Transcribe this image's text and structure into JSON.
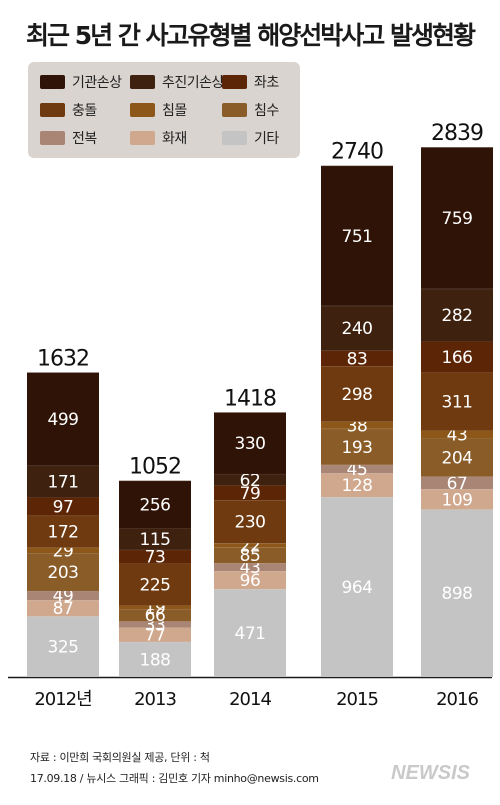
{
  "title": "최근 5년 간 사고유형별 해양선박사고 발생현황",
  "colors": {
    "기관손상": "#2f1306",
    "추진기손상": "#3e220f",
    "좌초": "#5c2505",
    "충돌": "#6f3a0f",
    "침몰": "#8c5718",
    "침수": "#8a5c28",
    "전복": "#a88574",
    "화재": "#cfa88e",
    "기타": "#c4c4c4"
  },
  "chart_data": {
    "type": "bar",
    "stacked": true,
    "categories": [
      "2012년",
      "2013",
      "2014",
      "2015",
      "2016"
    ],
    "totals": [
      1632,
      1052,
      1418,
      2740,
      2839
    ],
    "series": [
      {
        "name": "기타",
        "values": [
          325,
          188,
          471,
          964,
          898
        ]
      },
      {
        "name": "화재",
        "values": [
          87,
          77,
          96,
          128,
          109
        ]
      },
      {
        "name": "전복",
        "values": [
          49,
          33,
          43,
          45,
          67
        ]
      },
      {
        "name": "침수",
        "values": [
          203,
          66,
          85,
          193,
          204
        ]
      },
      {
        "name": "침몰",
        "values": [
          29,
          19,
          22,
          38,
          43
        ]
      },
      {
        "name": "충돌",
        "values": [
          172,
          225,
          230,
          298,
          311
        ]
      },
      {
        "name": "좌초",
        "values": [
          97,
          73,
          79,
          83,
          166
        ]
      },
      {
        "name": "추진기손상",
        "values": [
          171,
          115,
          62,
          240,
          282
        ]
      },
      {
        "name": "기관손상",
        "values": [
          499,
          256,
          330,
          751,
          759
        ]
      }
    ],
    "legend": [
      "기관손상",
      "추진기손상",
      "좌초",
      "충돌",
      "침몰",
      "침수",
      "전복",
      "화재",
      "기타"
    ],
    "legend_position": "top-left"
  },
  "source_line": "자료 : 이만희 국회의원실 제공, 단위 : 척",
  "credit_line": "17.09.18 / 뉴시스 그래픽 : 김민호 기자 minho@newsis.com",
  "logo_text": "NEWSIS"
}
